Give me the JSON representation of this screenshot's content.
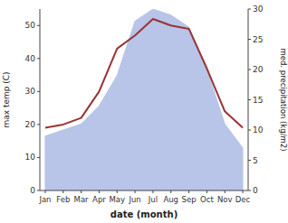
{
  "chart_data": {
    "type": "line",
    "xlabel": "date (month)",
    "ylabel": "max temp (C)",
    "y2label": "med. precipitation (kg/m2)",
    "categories": [
      "Jan",
      "Feb",
      "Mar",
      "Apr",
      "May",
      "Jun",
      "Jul",
      "Aug",
      "Sep",
      "Oct",
      "Nov",
      "Dec"
    ],
    "series": [
      {
        "type": "area",
        "axis": "y2",
        "color": "#b8c4e8",
        "values": [
          9,
          10,
          11,
          14,
          19,
          28,
          30,
          29,
          27,
          20,
          11,
          7
        ]
      },
      {
        "type": "line",
        "color": "#993333",
        "values": [
          19,
          20,
          22,
          30,
          43,
          47,
          52,
          50,
          49,
          37,
          24,
          19
        ]
      }
    ],
    "ylim": [
      0,
      55
    ],
    "yticks": [
      0,
      10,
      20,
      30,
      40,
      50
    ],
    "y2lim": [
      0,
      30
    ],
    "y2ticks": [
      0,
      5,
      10,
      15,
      20,
      25,
      30
    ]
  }
}
